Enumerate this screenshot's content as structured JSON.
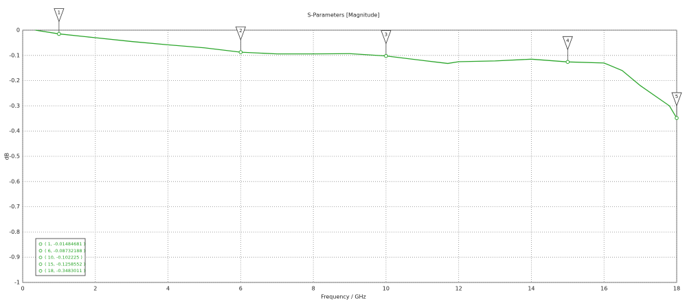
{
  "chart_data": {
    "type": "line",
    "title": "S-Parameters [Magnitude]",
    "x_label": "Frequency / GHz",
    "y_label": "dB",
    "x": [
      0.35,
      1,
      2,
      3,
      4,
      5,
      6,
      7,
      8,
      9,
      10,
      11,
      11.7,
      12,
      13,
      14,
      15,
      16,
      16.5,
      17,
      17.5,
      17.8,
      18
    ],
    "series": [
      {
        "color": "#2aa52a",
        "values": [
          0,
          -0.0148,
          -0.03,
          -0.045,
          -0.058,
          -0.07,
          -0.0873,
          -0.094,
          -0.094,
          -0.093,
          -0.1022,
          -0.12,
          -0.132,
          -0.125,
          -0.122,
          -0.115,
          -0.1259,
          -0.13,
          -0.16,
          -0.22,
          -0.27,
          -0.3,
          -0.3483
        ]
      }
    ],
    "xlim": [
      0,
      18
    ],
    "xticks": [
      0,
      2,
      4,
      6,
      8,
      10,
      12,
      14,
      16,
      18
    ],
    "ylim": [
      -1,
      0
    ],
    "yticks": [
      0,
      -0.1,
      -0.2,
      -0.3,
      -0.4,
      -0.5,
      -0.6,
      -0.7,
      -0.8,
      -0.9,
      -1
    ],
    "grid": true,
    "markers": [
      {
        "label": "1",
        "x": 1,
        "y": -0.01484681,
        "legend_label": "( 1, -0.01484681 )"
      },
      {
        "label": "2",
        "x": 6,
        "y": -0.08732188,
        "legend_label": "( 6, -0.08732188 )"
      },
      {
        "label": "3",
        "x": 10,
        "y": -0.102225,
        "legend_label": "( 10, -0.102225 )"
      },
      {
        "label": "4",
        "x": 15,
        "y": -0.1258552,
        "legend_label": "( 15, -0.1258552 )"
      },
      {
        "label": "5",
        "x": 18,
        "y": -0.3483011,
        "legend_label": "( 18, -0.3483011 )"
      }
    ]
  }
}
